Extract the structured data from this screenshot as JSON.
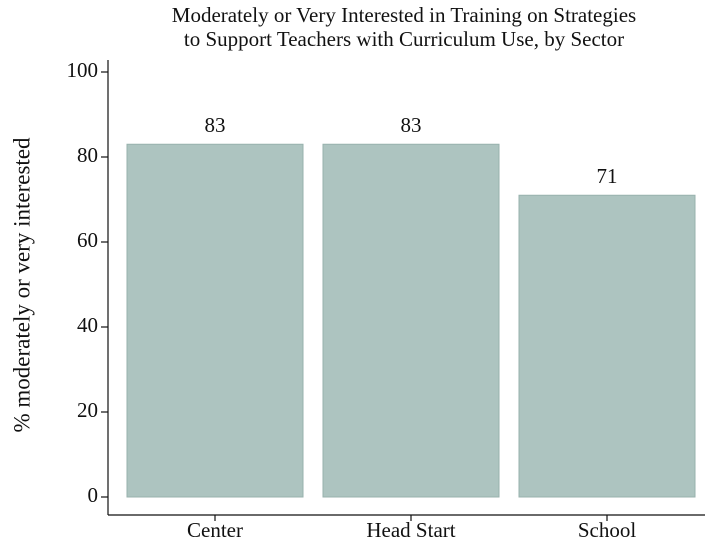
{
  "chart_data": {
    "type": "bar",
    "title": [
      "Moderately or Very Interested in Training on Strategies",
      "to Support Teachers with Curriculum Use, by Sector"
    ],
    "ylabel": "% moderately or very interested",
    "categories": [
      "Center",
      "Head Start",
      "School"
    ],
    "values": [
      83,
      83,
      71
    ],
    "color": "#adc4c0",
    "ylim": [
      0,
      100
    ],
    "yticks": [
      0,
      20,
      40,
      60,
      80,
      100
    ],
    "grid": false,
    "value_labels_shown": true
  }
}
